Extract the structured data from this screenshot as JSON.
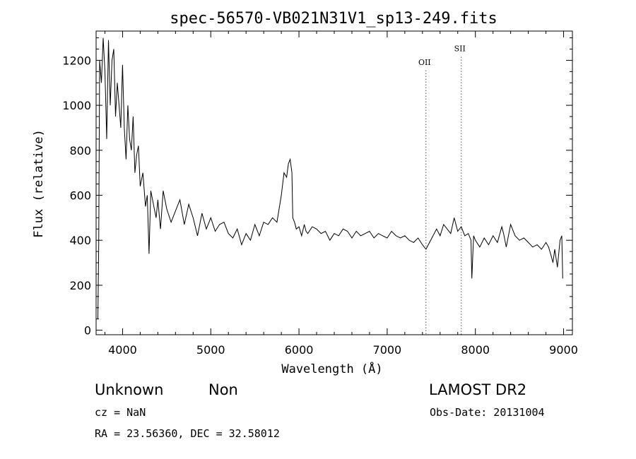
{
  "chart_data": {
    "type": "line",
    "title": "spec-56570-VB021N31V1_sp13-249.fits",
    "xlabel": "Wavelength (Å)",
    "ylabel": "Flux (relative)",
    "xlim": [
      3700,
      9100
    ],
    "ylim": [
      -20,
      1330
    ],
    "xticks": [
      4000,
      5000,
      6000,
      7000,
      8000,
      9000
    ],
    "yticks": [
      0,
      200,
      400,
      600,
      800,
      1000,
      1200
    ],
    "grid": false,
    "line_color": "#000000",
    "annotations": [
      {
        "label": "OII",
        "x": 7440,
        "y": 1180
      },
      {
        "label": "SII",
        "x": 7840,
        "y": 1240
      }
    ],
    "series": [
      {
        "x": [
          3720,
          3730,
          3740,
          3760,
          3780,
          3800,
          3820,
          3840,
          3860,
          3880,
          3900,
          3920,
          3940,
          3960,
          3980,
          4000,
          4020,
          4040,
          4060,
          4080,
          4100,
          4120,
          4140,
          4160,
          4180,
          4200,
          4230,
          4260,
          4280,
          4300,
          4320,
          4350,
          4380,
          4400,
          4430,
          4460,
          4500,
          4550,
          4600,
          4650,
          4700,
          4750,
          4800,
          4850,
          4900,
          4950,
          5000,
          5050,
          5100,
          5150,
          5200,
          5250,
          5300,
          5350,
          5400,
          5450,
          5500,
          5550,
          5600,
          5650,
          5700,
          5750,
          5800,
          5830,
          5860,
          5880,
          5900,
          5920,
          5930,
          5950,
          5970,
          6000,
          6030,
          6060,
          6080,
          6100,
          6150,
          6200,
          6250,
          6300,
          6350,
          6400,
          6450,
          6500,
          6550,
          6600,
          6650,
          6700,
          6750,
          6800,
          6850,
          6900,
          6950,
          7000,
          7050,
          7100,
          7150,
          7200,
          7250,
          7300,
          7350,
          7400,
          7440,
          7480,
          7520,
          7560,
          7600,
          7640,
          7680,
          7720,
          7760,
          7800,
          7840,
          7880,
          7920,
          7950,
          7960,
          7980,
          8000,
          8050,
          8100,
          8150,
          8200,
          8250,
          8300,
          8320,
          8350,
          8400,
          8450,
          8500,
          8550,
          8600,
          8650,
          8700,
          8750,
          8800,
          8830,
          8860,
          8880,
          8900,
          8930,
          8960,
          8980,
          8990
        ],
        "y": [
          50,
          380,
          1200,
          1100,
          1300,
          1150,
          850,
          1290,
          1000,
          1200,
          1250,
          950,
          1100,
          1000,
          900,
          1180,
          900,
          760,
          1000,
          850,
          800,
          950,
          700,
          780,
          820,
          640,
          700,
          550,
          600,
          340,
          620,
          560,
          500,
          580,
          450,
          620,
          540,
          480,
          530,
          580,
          470,
          560,
          500,
          420,
          520,
          450,
          500,
          440,
          470,
          480,
          430,
          410,
          450,
          380,
          430,
          400,
          470,
          420,
          480,
          470,
          500,
          480,
          600,
          700,
          680,
          740,
          760,
          700,
          500,
          480,
          450,
          460,
          420,
          470,
          440,
          430,
          460,
          450,
          430,
          440,
          400,
          430,
          420,
          450,
          440,
          410,
          440,
          420,
          430,
          440,
          410,
          430,
          420,
          410,
          440,
          420,
          410,
          420,
          400,
          390,
          410,
          380,
          360,
          390,
          420,
          450,
          420,
          470,
          450,
          430,
          500,
          440,
          460,
          420,
          430,
          400,
          230,
          420,
          400,
          370,
          410,
          380,
          420,
          390,
          460,
          430,
          370,
          470,
          420,
          400,
          410,
          390,
          370,
          380,
          360,
          390,
          370,
          330,
          300,
          360,
          280,
          400,
          420,
          230
        ]
      }
    ]
  },
  "info": {
    "class_label": "Unknown",
    "subclass_label": "Non",
    "survey_label": "LAMOST DR2",
    "cz_text": "cz = NaN",
    "obs_date_text": "Obs-Date: 20131004",
    "radec_text": "RA =  23.56360, DEC =  32.58012"
  }
}
